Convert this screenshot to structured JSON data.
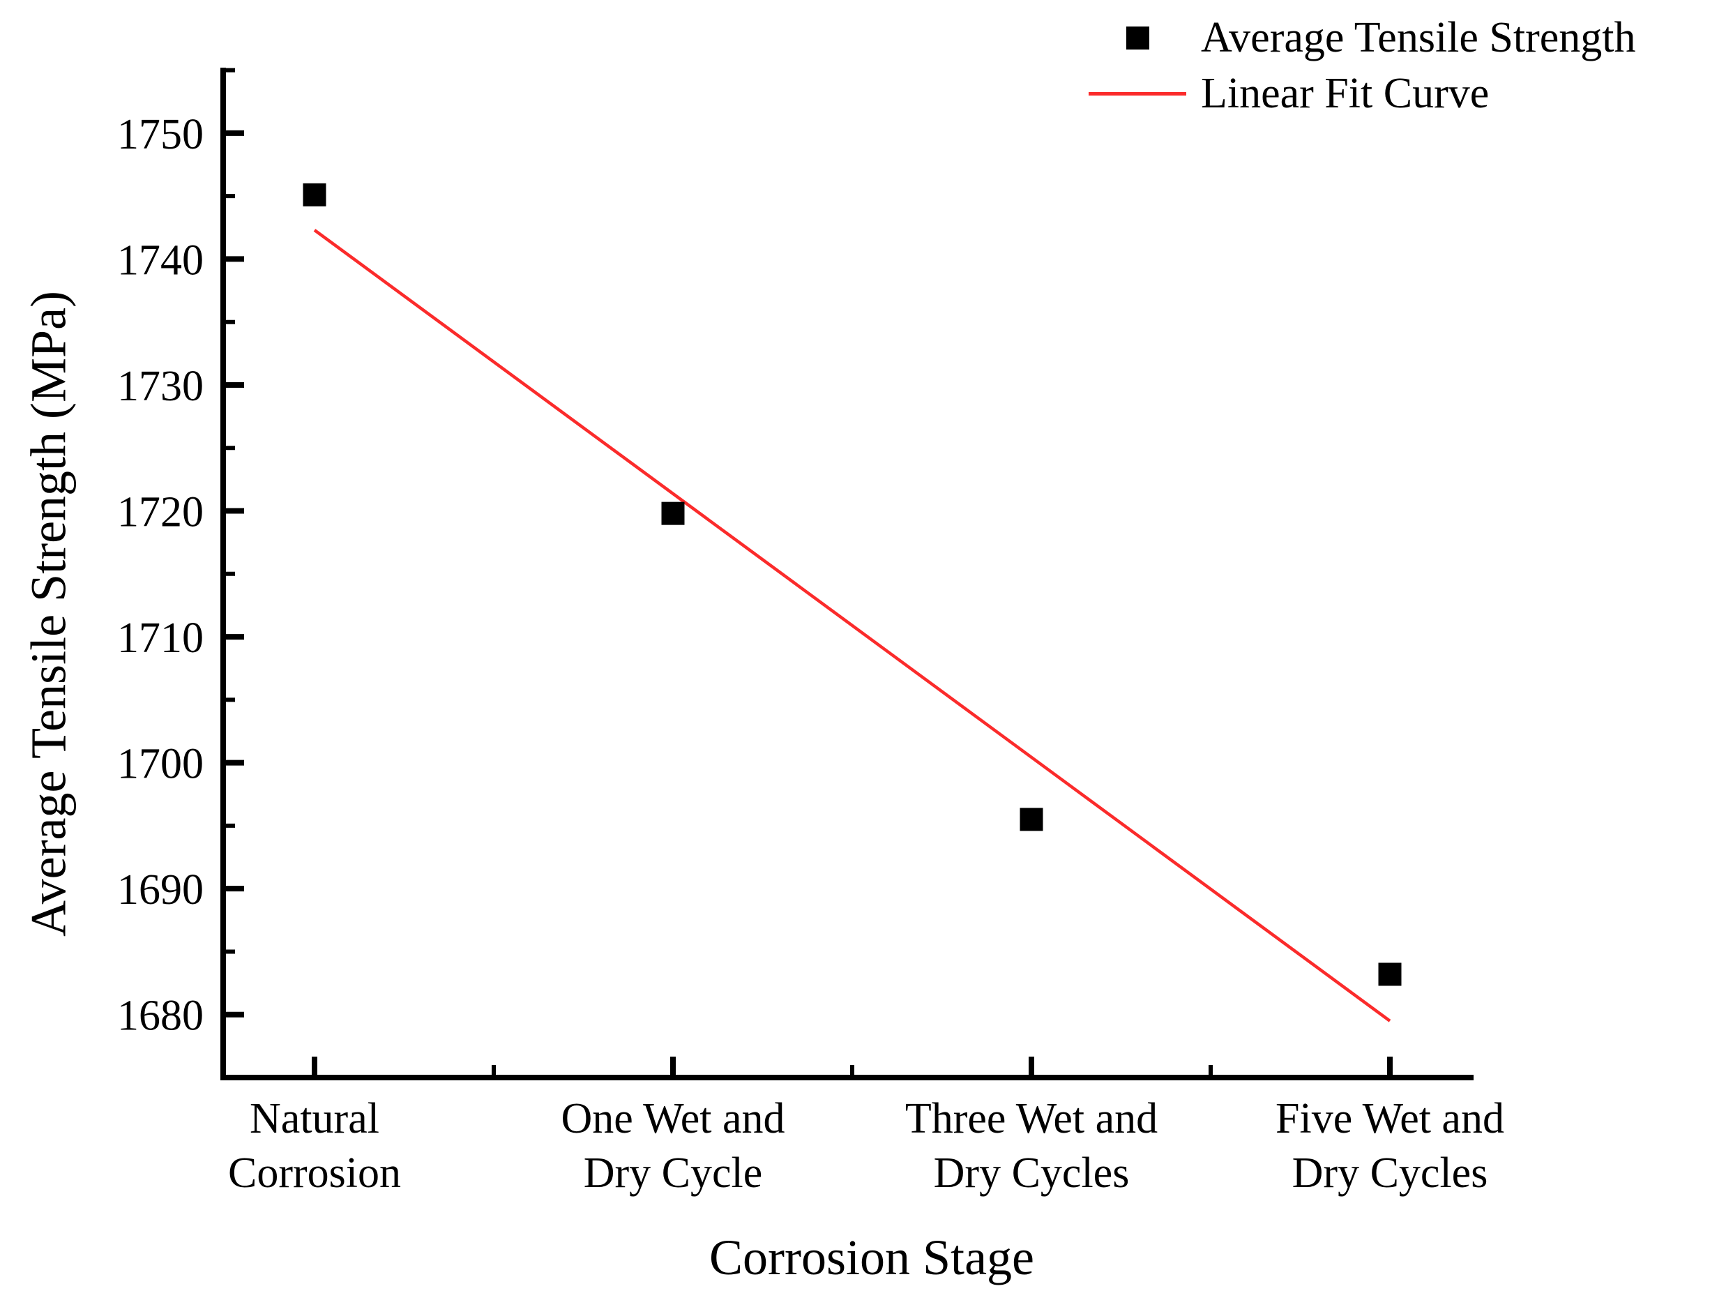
{
  "figure": {
    "background_color": "#ffffff",
    "text_color": "#000000"
  },
  "chart_data": {
    "type": "scatter",
    "title": "",
    "xlabel": "Corrosion Stage",
    "ylabel": "Average Tensile Strength (MPa)",
    "categories": [
      [
        "Natural",
        "Corrosion"
      ],
      [
        "One Wet and",
        "Dry Cycle"
      ],
      [
        "Three Wet and",
        "Dry Cycles"
      ],
      [
        "Five Wet and",
        "Dry Cycles"
      ]
    ],
    "series": [
      {
        "name": "Average Tensile Strength",
        "kind": "scatter",
        "marker": "square",
        "color": "#000000",
        "values": [
          1745.1,
          1719.8,
          1695.5,
          1683.2
        ]
      },
      {
        "name": "Linear Fit Curve",
        "kind": "line",
        "color": "#fb2b2b",
        "x_endpoints": [
          0,
          3
        ],
        "y_endpoints": [
          1742.3,
          1679.5
        ]
      }
    ],
    "ylim": [
      1675,
      1755.2
    ],
    "yticks_major": [
      1680,
      1690,
      1700,
      1710,
      1720,
      1730,
      1740,
      1750
    ],
    "yticks_minor": [
      1685,
      1695,
      1705,
      1715,
      1725,
      1735,
      1745,
      1755
    ],
    "grid": false,
    "legend_position": "top-right"
  }
}
